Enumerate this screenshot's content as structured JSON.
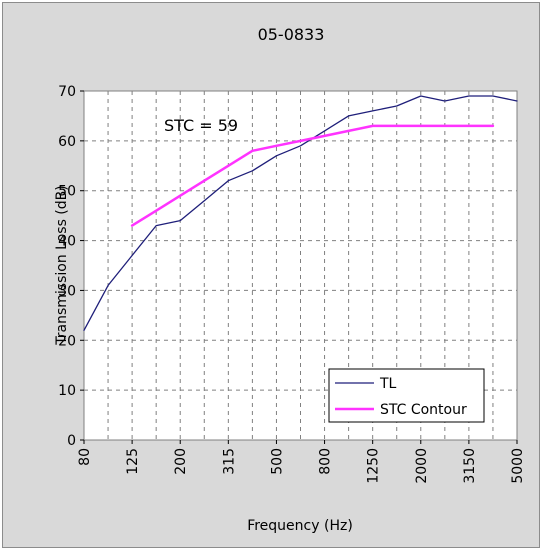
{
  "chart_data": {
    "type": "line",
    "title": "05-0833",
    "xlabel": "Frequency (Hz)",
    "ylabel": "Transmission Loss (dB)",
    "ylim": [
      0,
      70
    ],
    "yticks": [
      0,
      10,
      20,
      30,
      40,
      50,
      60,
      70
    ],
    "grid": true,
    "legend_position": "bottom-right",
    "frequencies": [
      80,
      100,
      125,
      160,
      200,
      250,
      315,
      400,
      500,
      630,
      800,
      1000,
      1250,
      1600,
      2000,
      2500,
      3150,
      4000,
      5000
    ],
    "xtick_labels": [
      "80",
      "125",
      "200",
      "315",
      "500",
      "800",
      "1250",
      "2000",
      "3150",
      "5000"
    ],
    "series": [
      {
        "name": "TL",
        "color": "#1f1f7a",
        "x": [
          80,
          100,
          125,
          160,
          200,
          250,
          315,
          400,
          500,
          630,
          800,
          1000,
          1250,
          1600,
          2000,
          2500,
          3150,
          4000,
          5000
        ],
        "values": [
          22,
          31,
          37,
          43,
          44,
          48,
          52,
          54,
          57,
          59,
          62,
          65,
          66,
          67,
          69,
          68,
          69,
          69,
          68
        ]
      },
      {
        "name": "STC Contour",
        "color": "#ff33ff",
        "x": [
          125,
          160,
          200,
          250,
          315,
          400,
          500,
          630,
          800,
          1000,
          1250,
          1600,
          2000,
          2500,
          3150,
          4000
        ],
        "values": [
          43,
          46,
          49,
          52,
          55,
          58,
          59,
          60,
          61,
          62,
          63,
          63,
          63,
          63,
          63,
          63
        ]
      }
    ],
    "annotation": "STC = 59"
  }
}
